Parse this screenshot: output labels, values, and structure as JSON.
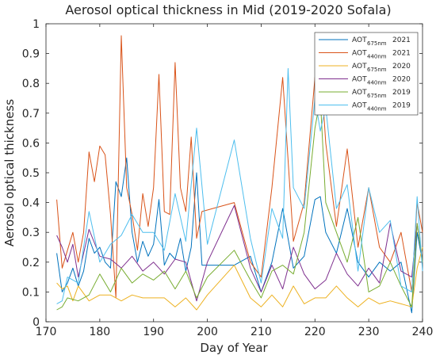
{
  "chart_data": {
    "type": "line",
    "title": "Aerosol optical thickness in Mid (2019-2020 Sofala)",
    "xlabel": "Day of Year",
    "ylabel": "Aerosol optical thickness",
    "xlim": [
      170,
      240
    ],
    "ylim": [
      0,
      1
    ],
    "xticks": [
      "170",
      "180",
      "190",
      "200",
      "210",
      "220",
      "230",
      "240"
    ],
    "yticks": [
      "0",
      "0.1",
      "0.2",
      "0.3",
      "0.4",
      "0.5",
      "0.6",
      "0.7",
      "0.8",
      "0.9",
      "1"
    ],
    "grid": false,
    "legend_position": "top-right",
    "series": [
      {
        "name": "AOT675nm 2021",
        "legend": {
          "main": "AOT",
          "sub": "675nm",
          "year": "2021"
        },
        "color": "#0072bd",
        "x": [
          172,
          173,
          174,
          175,
          176,
          177,
          178,
          179,
          180,
          181,
          182,
          183,
          184,
          185,
          186,
          187,
          188,
          189,
          190,
          191,
          192,
          193,
          194,
          195,
          196,
          197,
          198,
          199,
          205,
          208,
          210,
          212,
          214,
          216,
          218,
          220,
          221,
          222,
          224,
          226,
          228,
          230,
          232,
          234,
          236,
          238,
          239,
          240
        ],
        "y": [
          0.23,
          0.1,
          0.13,
          0.18,
          0.12,
          0.17,
          0.28,
          0.23,
          0.25,
          0.2,
          0.18,
          0.47,
          0.42,
          0.55,
          0.3,
          0.2,
          0.27,
          0.22,
          0.26,
          0.41,
          0.19,
          0.23,
          0.21,
          0.28,
          0.17,
          0.25,
          0.5,
          0.19,
          0.19,
          0.22,
          0.1,
          0.2,
          0.38,
          0.18,
          0.22,
          0.41,
          0.42,
          0.3,
          0.23,
          0.38,
          0.2,
          0.15,
          0.2,
          0.17,
          0.2,
          0.03,
          0.3,
          0.2
        ]
      },
      {
        "name": "AOT440nm 2021",
        "legend": {
          "main": "AOT",
          "sub": "440nm",
          "year": "2021"
        },
        "color": "#d95319",
        "x": [
          172,
          173,
          174,
          175,
          176,
          177,
          178,
          179,
          180,
          181,
          182,
          183,
          184,
          185,
          186,
          187,
          188,
          189,
          190,
          191,
          192,
          193,
          194,
          195,
          196,
          197,
          198,
          199,
          205,
          208,
          210,
          212,
          214,
          216,
          218,
          220,
          221,
          222,
          224,
          226,
          228,
          230,
          232,
          234,
          236,
          238,
          239,
          240
        ],
        "y": [
          0.41,
          0.18,
          0.24,
          0.3,
          0.2,
          0.3,
          0.57,
          0.47,
          0.59,
          0.56,
          0.36,
          0.08,
          0.96,
          0.45,
          0.36,
          0.24,
          0.43,
          0.32,
          0.45,
          0.83,
          0.37,
          0.36,
          0.87,
          0.45,
          0.37,
          0.62,
          0.28,
          0.37,
          0.4,
          0.2,
          0.15,
          0.45,
          0.82,
          0.27,
          0.4,
          0.82,
          0.88,
          0.6,
          0.32,
          0.58,
          0.25,
          0.45,
          0.25,
          0.2,
          0.3,
          0.1,
          0.4,
          0.3
        ]
      },
      {
        "name": "AOT675nm 2020",
        "legend": {
          "main": "AOT",
          "sub": "675nm",
          "year": "2020"
        },
        "color": "#edb120",
        "x": [
          172,
          173,
          174,
          175,
          176,
          178,
          180,
          182,
          184,
          186,
          188,
          190,
          192,
          194,
          196,
          198,
          200,
          205,
          208,
          210,
          212,
          214,
          216,
          218,
          220,
          222,
          224,
          226,
          228,
          230,
          232,
          234,
          236,
          238,
          239,
          240
        ],
        "y": [
          0.13,
          0.11,
          0.12,
          0.07,
          0.12,
          0.07,
          0.09,
          0.09,
          0.07,
          0.09,
          0.08,
          0.08,
          0.08,
          0.05,
          0.08,
          0.04,
          0.09,
          0.19,
          0.08,
          0.05,
          0.09,
          0.05,
          0.12,
          0.06,
          0.08,
          0.08,
          0.12,
          0.08,
          0.05,
          0.08,
          0.06,
          0.07,
          0.06,
          0.05,
          0.18,
          0.25
        ]
      },
      {
        "name": "AOT440nm 2020",
        "legend": {
          "main": "AOT",
          "sub": "440nm",
          "year": "2020"
        },
        "color": "#7e2f8e",
        "x": [
          172,
          173,
          174,
          175,
          176,
          178,
          180,
          182,
          184,
          186,
          188,
          190,
          192,
          194,
          196,
          198,
          200,
          205,
          208,
          210,
          212,
          214,
          216,
          218,
          220,
          222,
          224,
          226,
          228,
          230,
          232,
          234,
          236,
          238,
          239,
          240
        ],
        "y": [
          0.29,
          0.25,
          0.2,
          0.26,
          0.15,
          0.31,
          0.22,
          0.21,
          0.18,
          0.22,
          0.17,
          0.2,
          0.16,
          0.21,
          0.2,
          0.07,
          0.2,
          0.39,
          0.18,
          0.1,
          0.19,
          0.11,
          0.25,
          0.16,
          0.11,
          0.14,
          0.23,
          0.16,
          0.12,
          0.18,
          0.13,
          0.33,
          0.17,
          0.15,
          0.33,
          0.2
        ]
      },
      {
        "name": "AOT675nm 2019",
        "legend": {
          "main": "AOT",
          "sub": "675nm",
          "year": "2019"
        },
        "color": "#77ac30",
        "x": [
          172,
          173,
          174,
          176,
          178,
          180,
          182,
          184,
          186,
          188,
          190,
          192,
          194,
          196,
          198,
          200,
          205,
          208,
          210,
          212,
          214,
          216,
          218,
          220,
          221,
          222,
          224,
          226,
          228,
          230,
          232,
          234,
          236,
          238,
          239,
          240
        ],
        "y": [
          0.04,
          0.05,
          0.08,
          0.07,
          0.09,
          0.16,
          0.1,
          0.18,
          0.13,
          0.16,
          0.14,
          0.17,
          0.11,
          0.17,
          0.08,
          0.15,
          0.24,
          0.14,
          0.08,
          0.17,
          0.19,
          0.16,
          0.3,
          0.65,
          0.75,
          0.4,
          0.3,
          0.2,
          0.35,
          0.1,
          0.12,
          0.2,
          0.12,
          0.05,
          0.33,
          0.2
        ]
      },
      {
        "name": "AOT440nm 2019",
        "legend": {
          "main": "AOT",
          "sub": "440nm",
          "year": "2019"
        },
        "color": "#4dbeee",
        "x": [
          172,
          173,
          174,
          176,
          178,
          180,
          182,
          184,
          186,
          188,
          190,
          192,
          194,
          196,
          198,
          200,
          205,
          208,
          210,
          212,
          214,
          215,
          216,
          218,
          220,
          221,
          222,
          224,
          226,
          228,
          230,
          232,
          234,
          236,
          238,
          239,
          240
        ],
        "y": [
          0.06,
          0.07,
          0.15,
          0.13,
          0.37,
          0.2,
          0.26,
          0.29,
          0.36,
          0.3,
          0.3,
          0.24,
          0.43,
          0.27,
          0.65,
          0.26,
          0.61,
          0.28,
          0.13,
          0.38,
          0.28,
          0.85,
          0.45,
          0.38,
          0.75,
          0.64,
          0.72,
          0.38,
          0.46,
          0.17,
          0.45,
          0.3,
          0.34,
          0.12,
          0.1,
          0.42,
          0.17
        ]
      }
    ]
  }
}
